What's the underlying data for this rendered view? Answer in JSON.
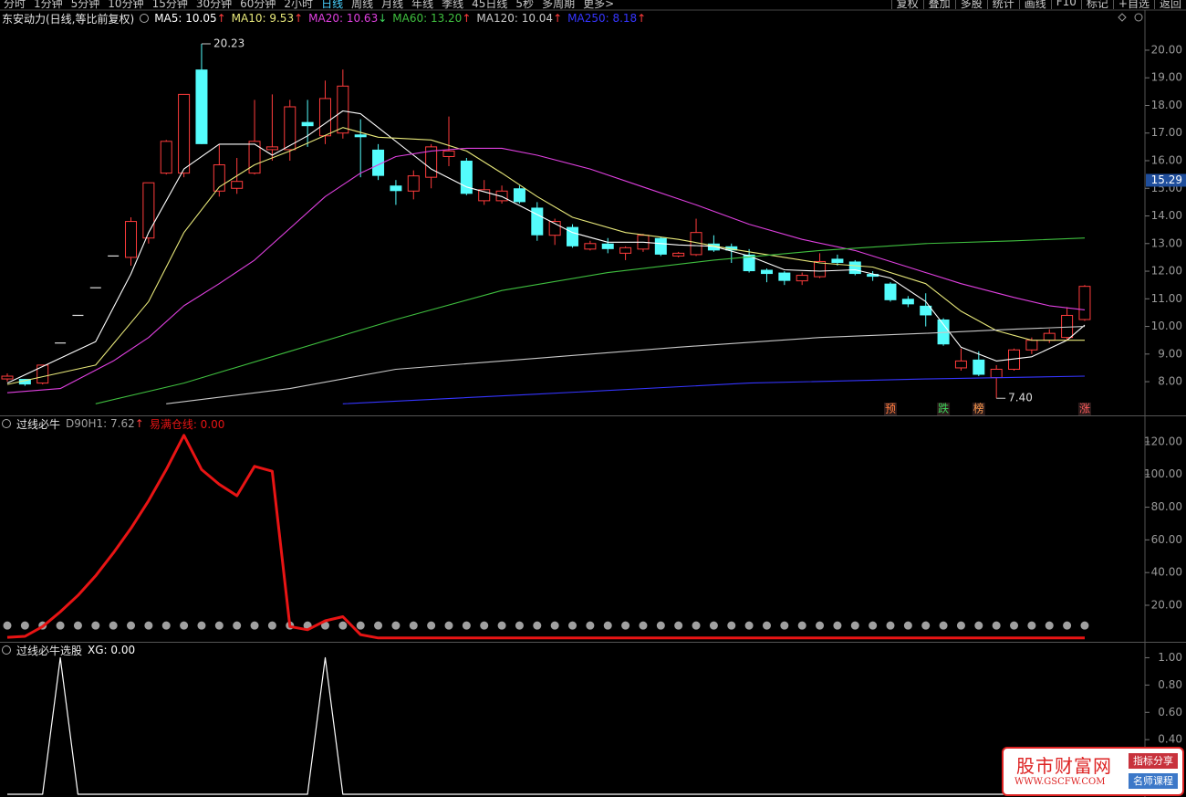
{
  "toolbar": {
    "left": [
      "分时",
      "1分钟",
      "5分钟",
      "10分钟",
      "15分钟",
      "30分钟",
      "60分钟",
      "2小时",
      "日线",
      "周线",
      "月线",
      "年线",
      "季线",
      "45日线",
      "5秒",
      "多周期",
      "更多>"
    ],
    "active_index": 8,
    "right": [
      "复权",
      "叠加",
      "多股",
      "统计",
      "画线",
      "F10",
      "标记",
      "+自选",
      "返回"
    ]
  },
  "chart_data": [
    {
      "type": "candlestick",
      "title": "东安动力(日线,等比前复权)",
      "up_color": "#ff3c3c",
      "down_color": "#54fcfc",
      "flat_color": "#e0e0e0",
      "ohlc": {
        "open": [
          8.1,
          8.1,
          7.95,
          9.4,
          10.4,
          11.4,
          12.55,
          12.5,
          13.2,
          15.55,
          15.55,
          19.3,
          14.9,
          15.0,
          15.55,
          16.4,
          16.4,
          17.4,
          16.9,
          17.0,
          16.95,
          16.4,
          15.1,
          14.9,
          15.4,
          16.15,
          16.0,
          14.55,
          14.55,
          15.0,
          14.3,
          13.3,
          13.6,
          12.8,
          13.0,
          12.65,
          12.8,
          13.2,
          12.55,
          12.6,
          13.0,
          12.9,
          12.6,
          12.05,
          11.95,
          11.65,
          11.8,
          12.45,
          12.35,
          11.9,
          11.55,
          11.0,
          10.75,
          10.25,
          8.5,
          8.8,
          8.15,
          8.45,
          9.15,
          9.5,
          9.6,
          10.25
        ],
        "high": [
          8.3,
          8.1,
          8.6,
          9.4,
          10.4,
          11.4,
          12.55,
          13.95,
          15.2,
          16.75,
          18.4,
          20.23,
          16.6,
          16.1,
          18.2,
          18.4,
          18.2,
          18.2,
          18.9,
          19.3,
          17.5,
          16.6,
          15.3,
          15.65,
          16.6,
          17.6,
          16.1,
          15.3,
          15.1,
          15.1,
          14.5,
          13.9,
          13.7,
          13.1,
          13.2,
          12.9,
          13.35,
          13.25,
          12.7,
          13.9,
          13.3,
          13.0,
          12.8,
          12.1,
          12.0,
          11.95,
          12.65,
          12.6,
          12.4,
          12.0,
          11.6,
          11.1,
          11.2,
          10.3,
          9.2,
          9.1,
          8.6,
          9.2,
          9.6,
          9.9,
          10.7,
          11.5
        ],
        "low": [
          8.0,
          7.85,
          7.9,
          9.4,
          10.4,
          11.4,
          12.55,
          12.2,
          13.0,
          15.5,
          15.4,
          16.6,
          14.7,
          14.8,
          15.5,
          16.0,
          16.0,
          16.5,
          16.6,
          16.8,
          15.4,
          15.3,
          14.4,
          14.6,
          15.0,
          15.8,
          14.75,
          14.4,
          14.45,
          14.45,
          13.1,
          12.95,
          12.85,
          12.75,
          12.65,
          12.4,
          12.7,
          12.55,
          12.5,
          12.55,
          12.7,
          12.3,
          11.95,
          11.6,
          11.5,
          11.5,
          11.75,
          12.2,
          11.85,
          11.65,
          10.9,
          10.7,
          10.0,
          9.3,
          8.4,
          8.2,
          7.4,
          8.4,
          9.0,
          9.4,
          9.5,
          10.2
        ],
        "close": [
          8.2,
          7.9,
          8.6,
          9.4,
          10.4,
          11.4,
          12.55,
          13.8,
          15.2,
          16.7,
          18.4,
          16.6,
          15.85,
          15.25,
          16.7,
          16.5,
          17.95,
          17.25,
          18.25,
          18.7,
          16.85,
          15.45,
          14.9,
          15.45,
          16.5,
          16.35,
          14.8,
          14.95,
          14.9,
          14.5,
          13.3,
          13.8,
          12.9,
          13.0,
          12.8,
          12.85,
          13.3,
          12.6,
          12.65,
          13.4,
          12.75,
          12.75,
          12.0,
          11.9,
          11.65,
          11.85,
          12.35,
          12.3,
          11.9,
          11.8,
          10.95,
          10.8,
          10.4,
          9.35,
          8.75,
          8.25,
          8.45,
          9.15,
          9.5,
          9.75,
          10.4,
          11.45
        ]
      },
      "series": [
        {
          "legend": "MA5: 10.05",
          "trend": "↑",
          "color": "#ffffff",
          "x": [
            0,
            5,
            7,
            8,
            10,
            12,
            14,
            15,
            17,
            19,
            20,
            21,
            23,
            24,
            26,
            28,
            30,
            32,
            34,
            36,
            38,
            40,
            42,
            44,
            46,
            48,
            50,
            52,
            54,
            56,
            58,
            60,
            61
          ],
          "values": [
            7.95,
            9.45,
            11.9,
            13.4,
            15.7,
            16.6,
            16.6,
            16.2,
            16.9,
            17.8,
            17.7,
            17.2,
            16.2,
            15.7,
            15.05,
            14.7,
            14.05,
            13.4,
            13.05,
            13.05,
            12.95,
            12.9,
            12.55,
            12.05,
            12.0,
            12.05,
            11.75,
            10.9,
            9.25,
            8.75,
            8.9,
            9.5,
            10.05
          ]
        },
        {
          "legend": "MA10: 9.53",
          "trend": "↑",
          "color": "#e8e87a",
          "x": [
            0,
            5,
            8,
            10,
            12,
            14,
            16,
            19,
            21,
            24,
            26,
            28,
            30,
            32,
            35,
            38,
            41,
            44,
            46,
            49,
            52,
            54,
            56,
            58,
            60,
            61
          ],
          "values": [
            7.9,
            8.6,
            10.9,
            13.4,
            15.05,
            15.85,
            16.35,
            17.2,
            16.85,
            16.75,
            16.35,
            15.55,
            14.7,
            13.95,
            13.4,
            13.15,
            12.8,
            12.5,
            12.3,
            12.15,
            11.55,
            10.55,
            9.85,
            9.5,
            9.5,
            9.5
          ]
        },
        {
          "legend": "MA20: 10.63",
          "trend": "↓",
          "color": "#e040e0",
          "x": [
            0,
            3,
            6,
            8,
            10,
            12,
            14,
            16,
            18,
            20,
            22,
            24,
            26,
            28,
            30,
            33,
            36,
            39,
            42,
            45,
            48,
            51,
            54,
            57,
            59,
            61
          ],
          "values": [
            7.6,
            7.75,
            8.75,
            9.6,
            10.75,
            11.55,
            12.4,
            13.55,
            14.7,
            15.55,
            16.15,
            16.35,
            16.45,
            16.45,
            16.2,
            15.7,
            15.05,
            14.4,
            13.7,
            13.15,
            12.75,
            12.15,
            11.55,
            11.05,
            10.75,
            10.6
          ]
        },
        {
          "legend": "MA60: 13.20",
          "trend": "↑",
          "color": "#3fbf3f",
          "x": [
            5,
            10,
            16,
            22,
            28,
            34,
            40,
            46,
            52,
            57,
            61
          ],
          "values": [
            7.2,
            7.95,
            9.1,
            10.25,
            11.3,
            11.95,
            12.4,
            12.75,
            13.0,
            13.1,
            13.2
          ]
        },
        {
          "legend": "MA120: 10.04",
          "trend": "↑",
          "color": "#c8c8c8",
          "x": [
            9,
            16,
            22,
            30,
            38,
            46,
            52,
            57,
            61
          ],
          "values": [
            7.2,
            7.75,
            8.45,
            8.85,
            9.25,
            9.6,
            9.75,
            9.9,
            10.0
          ]
        },
        {
          "legend": "MA250: 8.18",
          "trend": "↑",
          "color": "#3535ff",
          "x": [
            19,
            30,
            42,
            52,
            61
          ],
          "values": [
            7.2,
            7.55,
            7.95,
            8.1,
            8.2
          ]
        }
      ],
      "extremes": {
        "high": {
          "value": 20.23,
          "label": "20.23"
        },
        "low": {
          "value": 7.4,
          "label": "7.40"
        }
      },
      "signals": [
        {
          "x": 50,
          "label": "预",
          "color": "#ff7a3c"
        },
        {
          "x": 53,
          "label": "跌",
          "color": "#3cd35a"
        },
        {
          "x": 55,
          "label": "榜",
          "color": "#ff9a4c"
        },
        {
          "x": 61,
          "label": "涨",
          "color": "#ff5a5a"
        }
      ],
      "price_marker": 15.29,
      "ylim": [
        6.78,
        21.42
      ],
      "yticks": [
        {
          "value": 8,
          "label": "8.00"
        },
        {
          "value": 9,
          "label": "9.00"
        },
        {
          "value": 10,
          "label": "10.00"
        },
        {
          "value": 11,
          "label": "11.00"
        },
        {
          "value": 12,
          "label": "12.00"
        },
        {
          "value": 13,
          "label": "13.00"
        },
        {
          "value": 14,
          "label": "14.00"
        },
        {
          "value": 15,
          "label": "15.00"
        },
        {
          "value": 16,
          "label": "16.00"
        },
        {
          "value": 17,
          "label": "17.00"
        },
        {
          "value": 18,
          "label": "18.00"
        },
        {
          "value": 19,
          "label": "19.00"
        },
        {
          "value": 20,
          "label": "20.00"
        }
      ]
    },
    {
      "type": "line",
      "title": "过线必牛",
      "series": [
        {
          "legend": "D90H1: 7.62",
          "trend": "↑",
          "color": "#a0a0a0",
          "style": "dots",
          "values": [
            7.62,
            7.62,
            7.62,
            7.62,
            7.62,
            7.62,
            7.62,
            7.62,
            7.62,
            7.62,
            7.62,
            7.62,
            7.62,
            7.62,
            7.62,
            7.62,
            7.62,
            7.62,
            7.62,
            7.62,
            7.62,
            7.62,
            7.62,
            7.62,
            7.62,
            7.62,
            7.62,
            7.62,
            7.62,
            7.62,
            7.62,
            7.62,
            7.62,
            7.62,
            7.62,
            7.62,
            7.62,
            7.62,
            7.62,
            7.62,
            7.62,
            7.62,
            7.62,
            7.62,
            7.62,
            7.62,
            7.62,
            7.62,
            7.62,
            7.62,
            7.62,
            7.62,
            7.62,
            7.62,
            7.62,
            7.62,
            7.62,
            7.62,
            7.62,
            7.62,
            7.62,
            7.62
          ]
        },
        {
          "legend": "易满仓线: 0.00",
          "color": "#e81414",
          "style": "line",
          "values": [
            0.4,
            1,
            7,
            16,
            26,
            38,
            52,
            67,
            84,
            103,
            124,
            103,
            94,
            87,
            105,
            102,
            7,
            5,
            10.5,
            13,
            2,
            0,
            0,
            0,
            0,
            0,
            0,
            0,
            0,
            0,
            0,
            0,
            0,
            0,
            0,
            0,
            0,
            0,
            0,
            0,
            0,
            0,
            0,
            0,
            0,
            0,
            0,
            0,
            0,
            0,
            0,
            0,
            0,
            0,
            0,
            0,
            0,
            0,
            0,
            0,
            0,
            0
          ]
        }
      ],
      "ylim": [
        -2.35,
        135.6
      ],
      "yticks": [
        {
          "value": 20,
          "label": "20.00"
        },
        {
          "value": 40,
          "label": "40.00"
        },
        {
          "value": 60,
          "label": "60.00"
        },
        {
          "value": 80,
          "label": "80.00"
        },
        {
          "value": 100,
          "label": "100.00"
        },
        {
          "value": 120,
          "label": "120.00"
        }
      ]
    },
    {
      "type": "line",
      "title": "过线必牛选股",
      "series": [
        {
          "legend": "XG: 0.00",
          "color": "#ffffff",
          "style": "line",
          "values": [
            0,
            0,
            0,
            1,
            0,
            0,
            0,
            0,
            0,
            0,
            0,
            0,
            0,
            0,
            0,
            0,
            0,
            0,
            1,
            0,
            0,
            0,
            0,
            0,
            0,
            0,
            0,
            0,
            0,
            0,
            0,
            0,
            0,
            0,
            0,
            0,
            0,
            0,
            0,
            0,
            0,
            0,
            0,
            0,
            0,
            0,
            0,
            0,
            0,
            0,
            0,
            0,
            0,
            0,
            0,
            0,
            0,
            0,
            0,
            0,
            0,
            0
          ]
        }
      ],
      "ylim": [
        0,
        1.11
      ],
      "yticks": [
        {
          "value": 0.4,
          "label": "0.40"
        },
        {
          "value": 0.6,
          "label": "0.60"
        },
        {
          "value": 0.8,
          "label": "0.80"
        },
        {
          "value": 1,
          "label": "1.00"
        }
      ]
    }
  ],
  "watermark": {
    "title": "股市财富网",
    "url": "WWW.GSCFW.COM",
    "tag1": "指标分享",
    "tag2": "名师课程"
  }
}
